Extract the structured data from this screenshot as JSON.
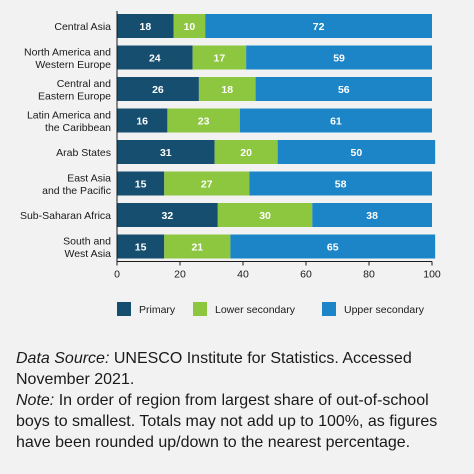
{
  "chart_data": {
    "type": "bar",
    "orientation": "horizontal",
    "stacked": true,
    "categories": [
      [
        "Central Asia"
      ],
      [
        "North America and",
        "Western Europe"
      ],
      [
        "Central and",
        "Eastern Europe"
      ],
      [
        "Latin America and",
        "the Caribbean"
      ],
      [
        "Arab States"
      ],
      [
        "East Asia",
        "and the Pacific"
      ],
      [
        "Sub-Saharan Africa"
      ],
      [
        "South and",
        "West Asia"
      ]
    ],
    "series": [
      {
        "name": "Primary",
        "color": "#154e6e",
        "values": [
          18,
          24,
          26,
          16,
          31,
          15,
          32,
          15
        ]
      },
      {
        "name": "Lower secondary",
        "color": "#8dc63f",
        "values": [
          10,
          17,
          18,
          23,
          20,
          27,
          30,
          21
        ]
      },
      {
        "name": "Upper secondary",
        "color": "#1b85c7",
        "values": [
          72,
          59,
          56,
          61,
          50,
          58,
          38,
          65
        ]
      }
    ],
    "xlim": [
      0,
      100
    ],
    "xticks": [
      0,
      20,
      40,
      60,
      80,
      100
    ],
    "legend_position": "bottom",
    "grid": false
  },
  "notes": {
    "source_label": "Data Source:",
    "source_text": " UNESCO Institute for Statistics. Accessed November 2021.",
    "note_label": "Note:",
    "note_text": " In order of region from largest share of out-of-school boys to smallest. Totals may not add up to 100%, as figures have been rounded up/down to the nearest percentage."
  }
}
